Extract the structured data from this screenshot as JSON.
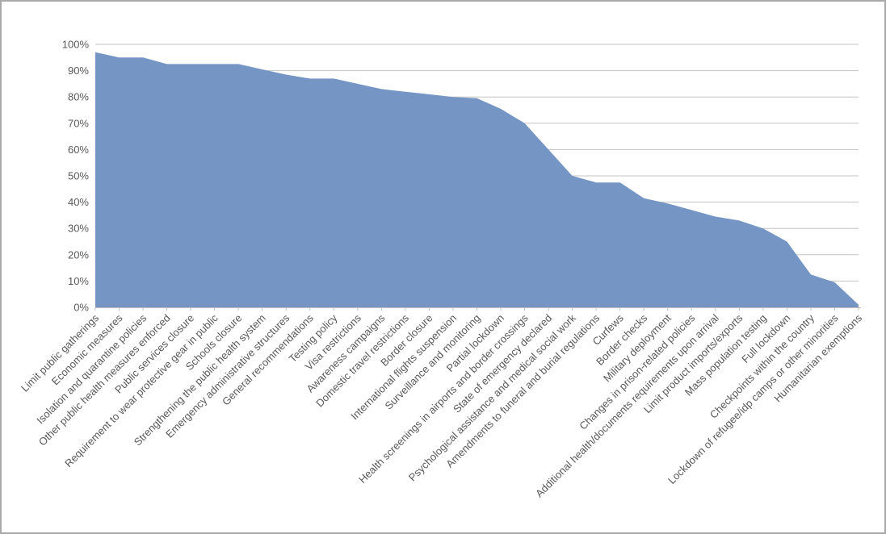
{
  "chart_data": {
    "type": "area",
    "title": "",
    "xlabel": "",
    "ylabel": "",
    "ylim": [
      0,
      100
    ],
    "grid": true,
    "legend": "none",
    "y_ticks": [
      "0%",
      "10%",
      "20%",
      "30%",
      "40%",
      "50%",
      "60%",
      "70%",
      "80%",
      "90%",
      "100%"
    ],
    "categories": [
      "Limit public gatherings",
      "Economic measures",
      "Isolation and quarantine policies",
      "Other public health measures enforced",
      "Public services closure",
      "Requirement to wear protective gear in public",
      "Schools closure",
      "Strengthening the public health system",
      "Emergency administrative structures",
      "General recommendations",
      "Testing policy",
      "Visa restrictions",
      "Awareness campaigns",
      "Domestic travel restrictions",
      "Border closure",
      "International flights suspension",
      "Surveillance and monitoring",
      "Partial lockdown",
      "Health screenings in airports and border crossings",
      "State of emergency declared",
      "Psychological assistance and medical social work",
      "Amendments to funeral and burial regulations",
      "Curfews",
      "Border checks",
      "Military deployment",
      "Changes in prison-related policies",
      "Additional health/documents requirements upon arrival",
      "Limit product imports/exports",
      "Mass population testing",
      "Full lockdown",
      "Checkpoints within the country",
      "Lockdown of refugee/idp camps or other minorities",
      "Humanitarian exemptions"
    ],
    "values": [
      97,
      95,
      95,
      92.5,
      92.5,
      92.5,
      92.5,
      90.5,
      88.5,
      87,
      87,
      85,
      83,
      82,
      81,
      80,
      79.5,
      75.5,
      70,
      60,
      50,
      47.5,
      47.5,
      41.5,
      39.5,
      37,
      34.5,
      33,
      30,
      25,
      12.5,
      9.5,
      1
    ],
    "colors": {
      "area_fill": "#7596C5",
      "gridline": "#C3C3C3",
      "axis_line": "#BFBFBF",
      "tick_mark": "#BFBFBF",
      "tick_label": "#595959",
      "frame_border": "#A9A9A9",
      "background": "#FFFFFF"
    }
  }
}
